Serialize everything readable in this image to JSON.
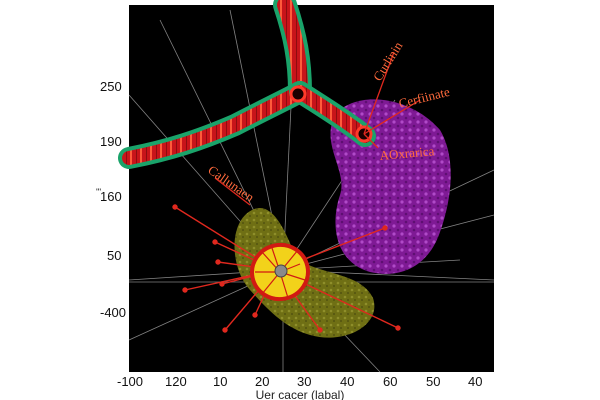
{
  "figure": {
    "y_ticks": [
      "250",
      "190",
      "160",
      "50",
      "-400"
    ],
    "x_ticks": [
      "-100",
      "120",
      "10",
      "20",
      "30",
      "40",
      "60",
      "50",
      "40"
    ],
    "y_extra_mark": "'''",
    "caption": "Uer cacer (labal)",
    "annotations": [
      "Curlinin",
      "Cerfiinate",
      "AOxrarica",
      "Callunaen"
    ],
    "colors": {
      "background": "#000000",
      "vessel_red": "#c8141a",
      "vessel_green": "#1aa36a",
      "purple_mass": "#8a1fa0",
      "olive_mass": "#7a7a1a",
      "yellow_core": "#f2d21a",
      "annotation_red": "#e0281e",
      "annotation_text": "#ff6a3c"
    }
  }
}
